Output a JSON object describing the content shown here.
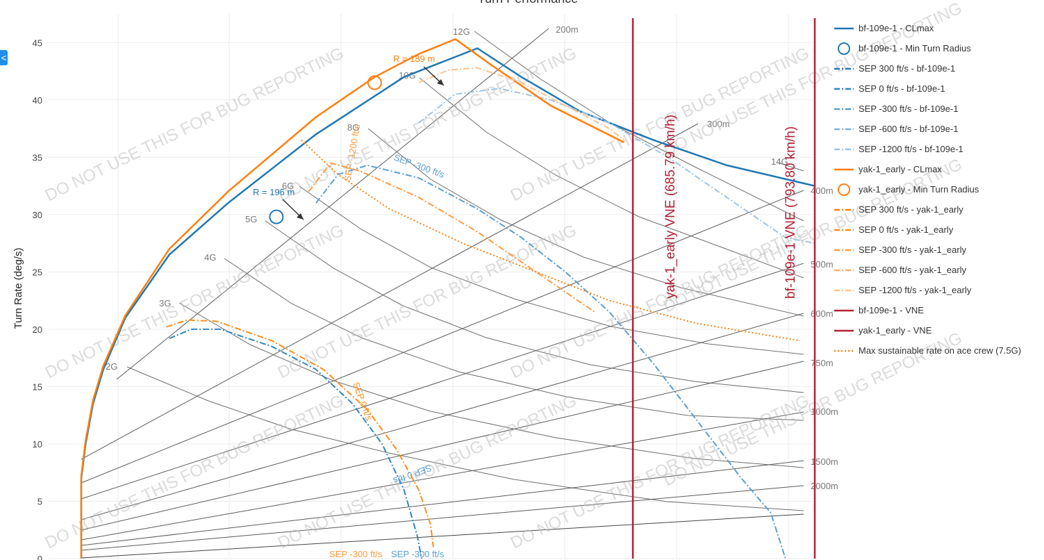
{
  "chart_data": {
    "type": "line",
    "title": "Turn Performance",
    "ylabel": "Turn Rate (deg/s)",
    "xlabel": "",
    "ylim": [
      0,
      47.5
    ],
    "yticks": [
      0,
      5,
      10,
      15,
      20,
      25,
      30,
      35,
      40,
      45
    ],
    "grid": true,
    "legend_position": "right",
    "series": [
      {
        "name": "bf-109e-1 - CLmax",
        "kind": "line",
        "style": "solid",
        "color": "#1f77b4",
        "points": [
          [
            0,
            0
          ],
          [
            0,
            7
          ],
          [
            3,
            10
          ],
          [
            8,
            13.5
          ],
          [
            15,
            16.5
          ],
          [
            30,
            21
          ],
          [
            60,
            26.5
          ],
          [
            100,
            31
          ],
          [
            160,
            37
          ],
          [
            220,
            42
          ],
          [
            270,
            44.5
          ],
          [
            300,
            42
          ],
          [
            340,
            39
          ],
          [
            390,
            36.5
          ],
          [
            440,
            34.3
          ],
          [
            500,
            32.5
          ]
        ]
      },
      {
        "name": "bf-109e-1 - Min Turn Radius",
        "kind": "marker",
        "color": "#1f77b4",
        "points": [
          [
            133,
            29.8
          ]
        ]
      },
      {
        "name": "SEP 300 ft/s - bf-109e-1",
        "kind": "line",
        "style": "dashdot",
        "color": "#1f77b4",
        "points": []
      },
      {
        "name": "SEP 0 ft/s - bf-109e-1",
        "kind": "line",
        "style": "dashdot",
        "color": "#2e86c1",
        "points": [
          [
            60,
            19.2
          ],
          [
            75,
            20
          ],
          [
            95,
            20
          ],
          [
            130,
            18.5
          ],
          [
            160,
            16.5
          ],
          [
            185,
            13.5
          ],
          [
            205,
            10
          ],
          [
            220,
            6
          ],
          [
            229,
            2
          ],
          [
            232,
            0
          ]
        ]
      },
      {
        "name": "SEP -300 ft/s - bf-109e-1",
        "kind": "line",
        "style": "dashdot",
        "color": "#5a9fd0",
        "points": [
          [
            160,
            31
          ],
          [
            175,
            33.5
          ],
          [
            195,
            34.3
          ],
          [
            230,
            33.2
          ],
          [
            270,
            30.5
          ],
          [
            300,
            28
          ],
          [
            330,
            25
          ],
          [
            360,
            21.5
          ],
          [
            390,
            17
          ],
          [
            420,
            12
          ],
          [
            450,
            7
          ],
          [
            470,
            4
          ],
          [
            480,
            0
          ]
        ]
      },
      {
        "name": "SEP -600 ft/s - bf-109e-1",
        "kind": "line",
        "style": "dashdot",
        "color": "#7fb2d8",
        "points": []
      },
      {
        "name": "SEP -1200 ft/s - bf-109e-1",
        "kind": "line",
        "style": "dashdot",
        "color": "#9ec5e4",
        "points": [
          [
            230,
            38
          ],
          [
            255,
            40.5
          ],
          [
            285,
            41
          ],
          [
            320,
            40
          ],
          [
            360,
            38
          ],
          [
            400,
            35
          ],
          [
            440,
            31.5
          ],
          [
            480,
            28
          ],
          [
            500,
            27.5
          ]
        ]
      },
      {
        "name": "yak-1_early - CLmax",
        "kind": "line",
        "style": "solid",
        "color": "#ff7f0e",
        "points": [
          [
            0,
            0
          ],
          [
            0,
            7.2
          ],
          [
            3,
            10.3
          ],
          [
            8,
            13.8
          ],
          [
            15,
            16.8
          ],
          [
            30,
            21.2
          ],
          [
            60,
            27
          ],
          [
            100,
            32
          ],
          [
            160,
            38.5
          ],
          [
            200,
            42
          ],
          [
            230,
            44
          ],
          [
            255,
            45.3
          ],
          [
            280,
            43
          ],
          [
            320,
            39.5
          ],
          [
            370,
            36.3
          ]
        ]
      },
      {
        "name": "yak-1_early - Min Turn Radius",
        "kind": "marker",
        "color": "#ff7f0e",
        "points": [
          [
            200,
            41.5
          ]
        ]
      },
      {
        "name": "SEP 300 ft/s - yak-1_early",
        "kind": "line",
        "style": "dashdot",
        "color": "#ff7f0e",
        "points": []
      },
      {
        "name": "SEP 0 ft/s - yak-1_early",
        "kind": "line",
        "style": "dashdot",
        "color": "#ff8c1a",
        "points": [
          [
            58,
            20.2
          ],
          [
            72,
            20.8
          ],
          [
            92,
            20.7
          ],
          [
            130,
            19
          ],
          [
            165,
            16.5
          ],
          [
            195,
            13
          ],
          [
            215,
            9.5
          ],
          [
            230,
            6
          ],
          [
            238,
            3
          ],
          [
            240,
            1
          ]
        ]
      },
      {
        "name": "SEP -300 ft/s - yak-1_early",
        "kind": "line",
        "style": "dashdot",
        "color": "#ff9a40",
        "points": [
          [
            155,
            32
          ],
          [
            170,
            34.5
          ],
          [
            190,
            33.8
          ],
          [
            230,
            31.5
          ],
          [
            270,
            28.5
          ],
          [
            310,
            25
          ],
          [
            350,
            21.5
          ]
        ]
      },
      {
        "name": "SEP -600 ft/s - yak-1_early",
        "kind": "line",
        "style": "dashdot",
        "color": "#ffad66",
        "points": []
      },
      {
        "name": "SEP -1200 ft/s - yak-1_early",
        "kind": "line",
        "style": "dashdot",
        "color": "#ffc38f",
        "points": [
          [
            230,
            41.5
          ],
          [
            250,
            42.6
          ],
          [
            270,
            42.8
          ],
          [
            300,
            41.5
          ],
          [
            330,
            39.5
          ],
          [
            360,
            37.5
          ],
          [
            370,
            36.5
          ]
        ]
      },
      {
        "name": "bf-109e-1 - VNE",
        "kind": "vline",
        "color": "#b22033",
        "x": 500
      },
      {
        "name": "yak-1_early - VNE",
        "kind": "vline",
        "color": "#b22033",
        "x": 376
      },
      {
        "name": "Max sustainable rate on ace crew (7.5G)",
        "kind": "line",
        "style": "dotted",
        "color": "#ff7f0e",
        "points": [
          [
            150,
            36.5
          ],
          [
            175,
            33.5
          ],
          [
            210,
            30.5
          ],
          [
            260,
            27.5
          ],
          [
            310,
            25
          ],
          [
            360,
            22.5
          ],
          [
            420,
            20.5
          ],
          [
            490,
            19
          ]
        ]
      }
    ],
    "g_lines": [
      "2G",
      "3G",
      "4G",
      "5G",
      "6G",
      "8G",
      "10G",
      "12G",
      "14G"
    ],
    "radius_lines": [
      "200m",
      "300m",
      "400m",
      "500m",
      "600m",
      "750m",
      "1000m",
      "1500m",
      "2000m"
    ],
    "annotations": {
      "bf_min_radius": "R = 196 m",
      "yak_min_radius": "R = 189 m",
      "yak_vne": "yak-1_early VNE (685.79 km/h)",
      "bf_vne": "bf-109e-1 VNE (793.80 km/h)",
      "sep_0_curve": "SEP 0 ft/s",
      "sep_m300_curve": "SEP -300 ft/s",
      "sep_m1200_curve": "SEP -1200 ft/s",
      "sep_bottom_stack": "SEP -300 ft/s"
    },
    "watermark": "DO NOT USE THIS FOR BUG REPORTING"
  },
  "side_tab": "<"
}
